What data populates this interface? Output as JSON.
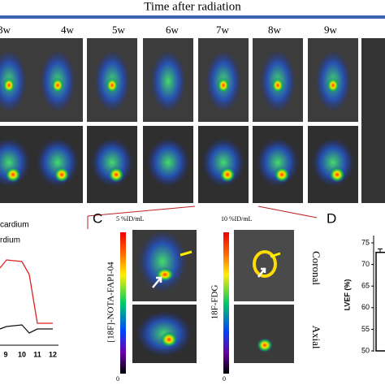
{
  "header": {
    "title": "Time after radiation",
    "timepoints": [
      "3w",
      "4w",
      "5w",
      "6w",
      "7w",
      "8w",
      "9w"
    ]
  },
  "panel_b": {
    "legend": [
      "cardium",
      "rdium"
    ],
    "xticks": [
      "9",
      "10",
      "11",
      "12"
    ]
  },
  "panel_c": {
    "label": "C",
    "fapi": {
      "scale_max": "5 %ID/mL",
      "scale_min": "0",
      "tracer": "[18F]-NOTA-FAPI-04"
    },
    "fdg": {
      "scale_max": "10 %ID/mL",
      "scale_min": "0",
      "tracer": "18F-FDG"
    },
    "views": [
      "Coronal",
      "Axial"
    ]
  },
  "chart_data": {
    "type": "bar",
    "label": "D",
    "ylabel": "LVEF (%)",
    "categories": [
      null
    ],
    "values": [
      72.8
    ],
    "errors": [
      0.8
    ],
    "color": "#ffffff",
    "ylim": [
      50,
      76
    ],
    "yticks": [
      50,
      55,
      60,
      65,
      70,
      75
    ]
  }
}
